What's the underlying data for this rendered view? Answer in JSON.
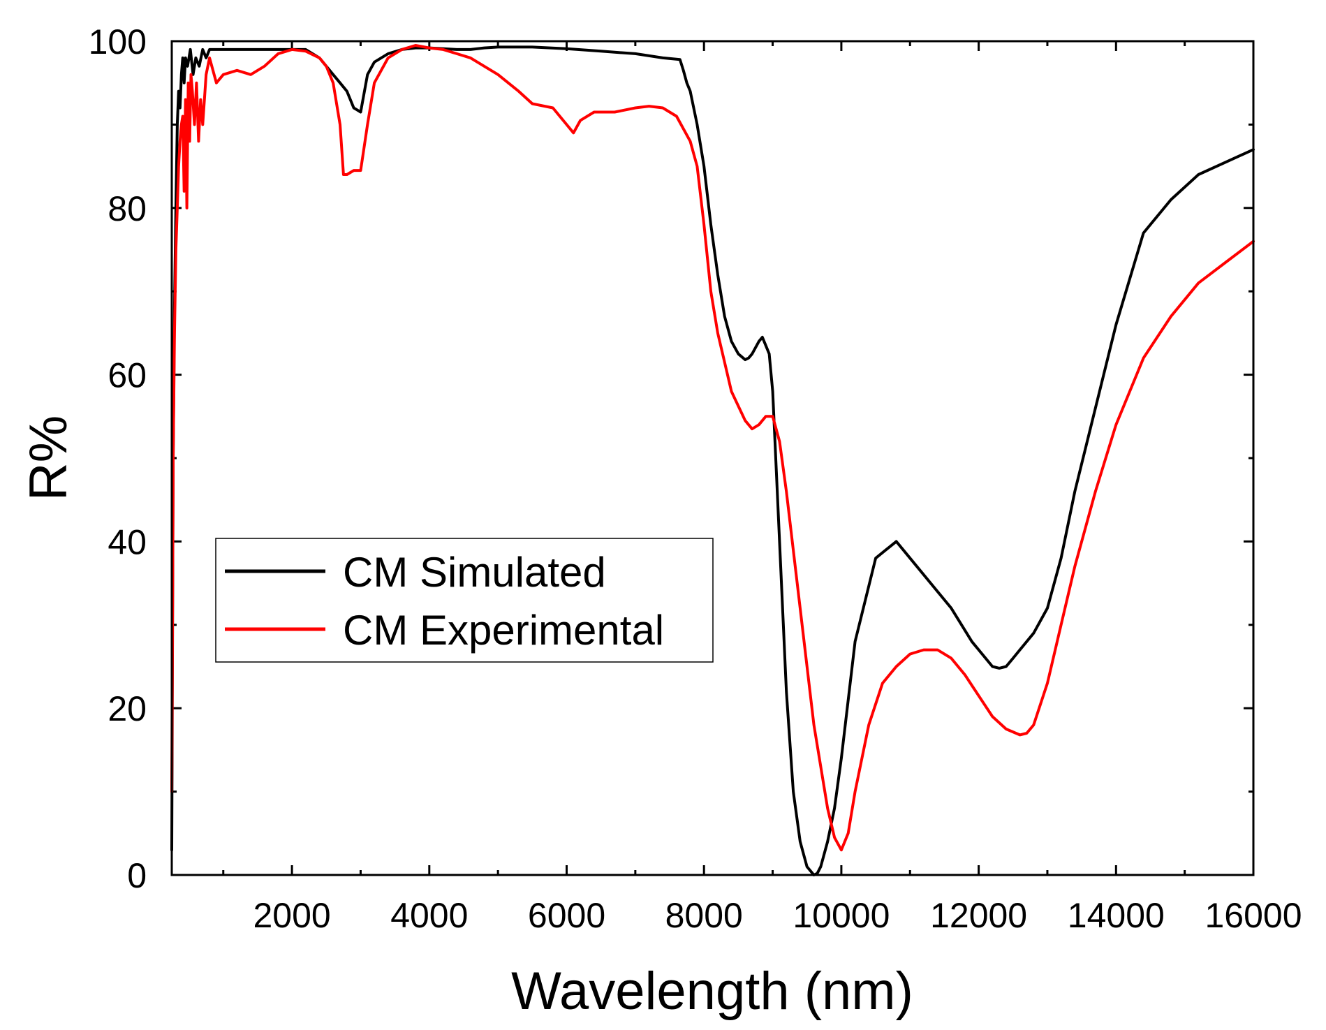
{
  "chart_data": {
    "type": "line",
    "xlabel": "Wavelength  (nm)",
    "ylabel": "R%",
    "xlim": [
      250,
      16000
    ],
    "ylim": [
      0,
      100
    ],
    "xticks": [
      2000,
      4000,
      6000,
      8000,
      10000,
      12000,
      14000,
      16000
    ],
    "xminor": [
      1000,
      3000,
      5000,
      7000,
      9000,
      11000,
      13000,
      15000
    ],
    "yticks": [
      0,
      20,
      40,
      60,
      80,
      100
    ],
    "yminor": [
      10,
      30,
      50,
      70,
      90
    ],
    "legend_position": "center-left",
    "series": [
      {
        "name": "CM Simulated",
        "color": "#000000",
        "x": [
          250,
          270,
          290,
          310,
          330,
          350,
          370,
          390,
          410,
          430,
          450,
          480,
          520,
          560,
          600,
          650,
          700,
          750,
          800,
          900,
          1000,
          1100,
          1200,
          1300,
          1400,
          1500,
          1600,
          1800,
          2000,
          2200,
          2400,
          2600,
          2700,
          2800,
          2900,
          3000,
          3100,
          3200,
          3400,
          3600,
          3800,
          4000,
          4200,
          4400,
          4600,
          4800,
          5000,
          5500,
          6000,
          6500,
          7000,
          7400,
          7650,
          7700,
          7750,
          7800,
          7900,
          8000,
          8100,
          8200,
          8300,
          8400,
          8500,
          8600,
          8650,
          8700,
          8800,
          8850,
          8900,
          8950,
          9000,
          9100,
          9200,
          9300,
          9400,
          9500,
          9600,
          9650,
          9700,
          9800,
          9900,
          10000,
          10200,
          10500,
          10800,
          11000,
          11300,
          11600,
          11900,
          12200,
          12300,
          12400,
          12500,
          12600,
          12800,
          13000,
          13200,
          13400,
          13700,
          14000,
          14400,
          14800,
          15200,
          15600,
          16000
        ],
        "y": [
          3,
          50,
          68,
          80,
          90,
          94,
          92,
          96,
          98,
          95,
          98,
          97,
          99,
          96,
          98,
          97,
          99,
          98,
          99,
          99,
          99,
          99,
          99,
          99,
          99,
          99,
          99,
          99,
          99,
          99,
          98,
          96,
          95,
          94,
          92,
          91.5,
          96,
          97.5,
          98.5,
          99,
          99.2,
          99.2,
          99.1,
          99,
          99,
          99.2,
          99.3,
          99.3,
          99.1,
          98.8,
          98.5,
          98,
          97.8,
          96.5,
          95,
          94,
          90,
          85,
          78,
          72,
          67,
          64,
          62.5,
          61.8,
          62,
          62.5,
          64,
          64.5,
          63.5,
          62.5,
          58,
          40,
          22,
          10,
          4,
          1,
          0,
          0.2,
          1,
          4,
          8,
          14,
          28,
          38,
          40,
          38,
          35,
          32,
          28,
          25,
          24.8,
          25,
          26,
          27,
          29,
          32,
          38,
          46,
          56,
          66,
          77,
          81,
          84,
          85.5,
          87
        ]
      },
      {
        "name": "CM Experimental",
        "color": "#ff0000",
        "x": [
          250,
          270,
          290,
          310,
          330,
          350,
          370,
          390,
          410,
          430,
          450,
          470,
          490,
          510,
          530,
          550,
          580,
          610,
          640,
          670,
          700,
          750,
          800,
          900,
          1000,
          1200,
          1400,
          1600,
          1800,
          2000,
          2200,
          2400,
          2500,
          2600,
          2700,
          2750,
          2800,
          2900,
          3000,
          3100,
          3200,
          3400,
          3600,
          3800,
          4000,
          4200,
          4400,
          4600,
          5000,
          5300,
          5500,
          5800,
          6000,
          6100,
          6200,
          6400,
          6700,
          7000,
          7200,
          7400,
          7600,
          7800,
          7900,
          8000,
          8100,
          8200,
          8400,
          8600,
          8700,
          8800,
          8900,
          9000,
          9100,
          9200,
          9400,
          9600,
          9800,
          9900,
          10000,
          10100,
          10200,
          10400,
          10600,
          10800,
          11000,
          11200,
          11400,
          11600,
          11800,
          12000,
          12200,
          12400,
          12600,
          12700,
          12800,
          13000,
          13200,
          13400,
          13700,
          14000,
          14400,
          14800,
          15200,
          15600,
          16000
        ],
        "y": [
          10,
          50,
          65,
          75,
          80,
          85,
          88,
          90,
          91,
          82,
          93,
          80,
          95,
          88,
          96,
          94,
          90,
          95,
          88,
          93,
          90,
          96,
          98,
          95,
          96,
          96.5,
          96,
          97,
          98.5,
          99,
          98.8,
          98,
          97,
          95,
          90,
          84,
          84,
          84.5,
          84.5,
          90,
          95,
          98,
          99,
          99.5,
          99.2,
          99,
          98.5,
          98,
          96,
          94,
          92.5,
          92,
          90,
          89,
          90.5,
          91.5,
          91.5,
          92,
          92.2,
          92,
          91,
          88,
          85,
          78,
          70,
          65,
          58,
          54.5,
          53.5,
          54,
          55,
          55,
          52,
          46,
          32,
          18,
          8,
          4.5,
          3,
          5,
          10,
          18,
          23,
          25,
          26.5,
          27,
          27,
          26,
          24,
          21.5,
          19,
          17.5,
          16.8,
          17,
          18,
          23,
          30,
          37,
          46,
          54,
          62,
          67,
          71,
          73.5,
          76
        ]
      }
    ]
  }
}
